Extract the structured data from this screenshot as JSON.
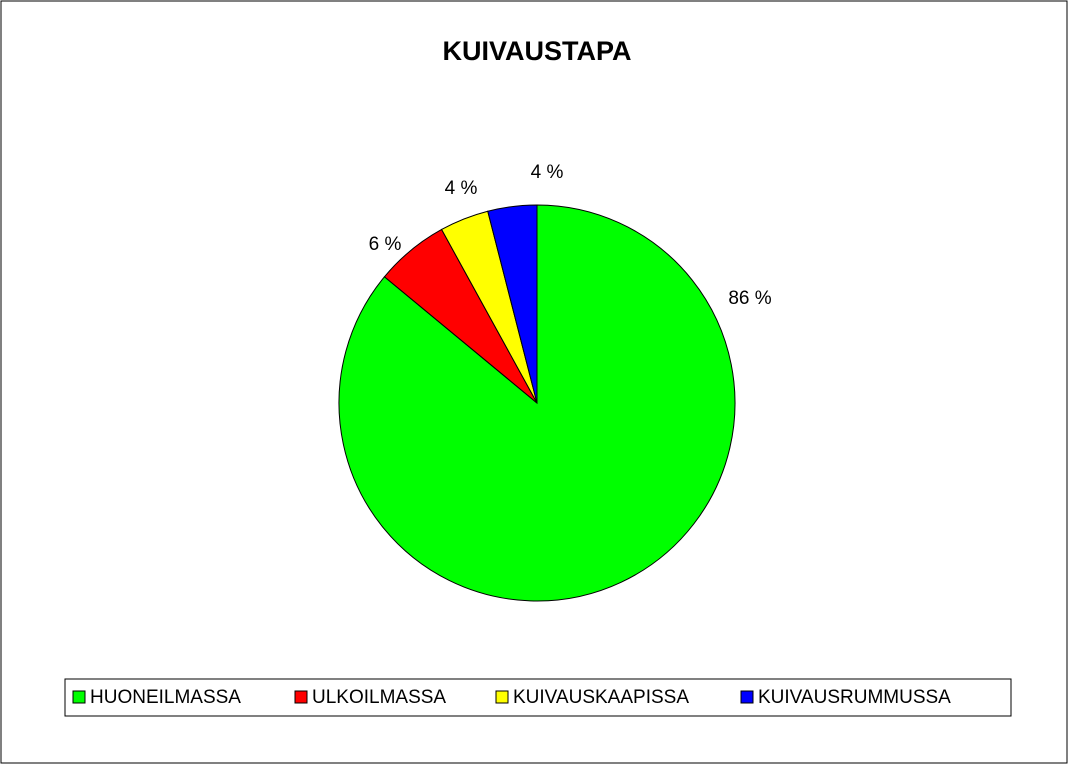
{
  "chart_data": {
    "type": "pie",
    "title": "KUIVAUSTAPA",
    "categories": [
      "HUONEILMASSA",
      "ULKOILMASSA",
      "KUIVAUSKAAPISSA",
      "KUIVAUSRUMMUSSA"
    ],
    "values": [
      86,
      6,
      4,
      4
    ],
    "value_labels": [
      "86 %",
      "6 %",
      "4 %",
      "4 %"
    ],
    "colors": [
      "#00ff00",
      "#ff0000",
      "#ffff00",
      "#0000ff"
    ],
    "legend": "bottom"
  }
}
